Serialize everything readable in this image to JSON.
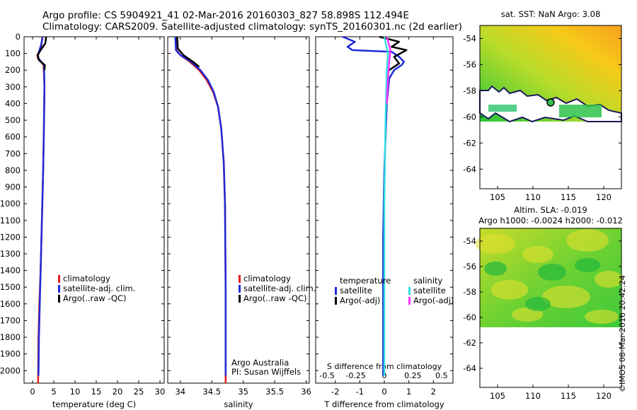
{
  "header": {
    "line1": "Argo profile: CS 5904921_41 02-Mar-2016 20160303_827 58.898S 112.494E",
    "line2": "Climatology: CARS2009. Satellite-adjusted climatology: synTS_20160301.nc (2d earlier)"
  },
  "colors": {
    "climatology": "#e41a1c",
    "satellite": "#1f2ad6",
    "argo": "#000000",
    "satellite_salinity": "#33e0e0",
    "argo_salinity": "#ff33ff"
  },
  "chart_data": [
    {
      "type": "line",
      "id": "temperature",
      "xlabel": "temperature (deg C)",
      "ylabel": "",
      "xlim": [
        -2,
        31
      ],
      "xticks": [
        0,
        5,
        10,
        15,
        20,
        25,
        30
      ],
      "ylim": [
        0,
        2075
      ],
      "yticks": [
        0,
        100,
        200,
        300,
        400,
        500,
        600,
        700,
        800,
        900,
        1000,
        1100,
        1200,
        1300,
        1400,
        1500,
        1600,
        1700,
        1800,
        1900,
        2000
      ],
      "legend": [
        "climatology",
        "satellite-adj. clim.",
        "Argo(..raw -QC)"
      ],
      "series": [
        {
          "name": "climatology",
          "color": "climatology",
          "x": [
            2.3,
            2.1,
            1.6,
            1.1,
            1.3,
            2.6,
            2.8,
            2.7,
            2.5,
            2.3,
            2.1,
            1.9,
            1.6,
            1.4,
            1.3
          ],
          "y": [
            0,
            50,
            90,
            110,
            130,
            170,
            300,
            500,
            800,
            1000,
            1200,
            1400,
            1600,
            1800,
            2075
          ]
        },
        {
          "name": "satellite-adj. clim.",
          "color": "satellite",
          "x": [
            2.4,
            2.0,
            1.5,
            1.3,
            1.4,
            2.7,
            2.8,
            2.7,
            2.5,
            2.3,
            2.1,
            1.9,
            1.7,
            1.5,
            1.4
          ],
          "y": [
            0,
            50,
            90,
            110,
            130,
            170,
            300,
            500,
            800,
            1000,
            1200,
            1400,
            1600,
            1800,
            2030
          ]
        },
        {
          "name": "Argo(..raw -QC)",
          "color": "argo",
          "x": [
            3.2,
            3.0,
            1.9,
            1.2,
            1.5,
            2.9,
            2.8
          ],
          "y": [
            0,
            40,
            80,
            110,
            140,
            170,
            200
          ]
        }
      ]
    },
    {
      "type": "line",
      "id": "salinity",
      "xlabel": "salinity",
      "ylabel": "",
      "xlim": [
        33.8,
        36.05
      ],
      "xticks": [
        34,
        34.5,
        35,
        35.5,
        36
      ],
      "xtick_labels": [
        "34",
        "34.5",
        "35",
        "35.5",
        "36"
      ],
      "ylim": [
        0,
        2075
      ],
      "legend": [
        "climatology",
        "satellite-adj. clim.",
        "Argo(..raw -QC)"
      ],
      "annotations": [
        "Argo Australia",
        "PI: Susan Wijffels"
      ],
      "series": [
        {
          "name": "climatology",
          "color": "climatology",
          "x": [
            33.92,
            33.94,
            34.0,
            34.15,
            34.3,
            34.42,
            34.52,
            34.6,
            34.65,
            34.69,
            34.71,
            34.72,
            34.72
          ],
          "y": [
            0,
            80,
            110,
            150,
            200,
            260,
            330,
            420,
            550,
            750,
            1000,
            1500,
            2075
          ]
        },
        {
          "name": "satellite-adj. clim.",
          "color": "satellite",
          "x": [
            33.92,
            33.93,
            34.0,
            34.17,
            34.32,
            34.44,
            34.53,
            34.6,
            34.65,
            34.69,
            34.71,
            34.72,
            34.72
          ],
          "y": [
            0,
            80,
            110,
            150,
            200,
            260,
            330,
            420,
            550,
            750,
            1000,
            1500,
            2030
          ]
        },
        {
          "name": "Argo(..raw -QC)",
          "color": "argo",
          "x": [
            33.95,
            33.96,
            34.05,
            34.2,
            34.3
          ],
          "y": [
            0,
            70,
            110,
            150,
            180
          ]
        }
      ]
    },
    {
      "type": "line",
      "id": "difference",
      "xlabel": "T difference from climatology",
      "xlabel_top": "S difference from climatology",
      "xlim": [
        -2.8,
        2.8
      ],
      "xticks": [
        -2,
        -1,
        0,
        1,
        2
      ],
      "top_xticks": [
        -0.5,
        -0.25,
        0,
        0.25,
        0.5
      ],
      "top_xtick_labels": [
        "-0.5",
        "-0.25",
        "0",
        "0.25",
        "0.5"
      ],
      "ylim": [
        0,
        2075
      ],
      "legend_groups": [
        {
          "title": "temperature",
          "items": [
            "satellite",
            "Argo(-adj)"
          ]
        },
        {
          "title": "salinity",
          "items": [
            "satellite",
            "Argo(-adj)"
          ]
        }
      ],
      "series": [
        {
          "name": "temperature satellite",
          "color": "satellite",
          "x": [
            -1.7,
            -1.2,
            -1.5,
            -1.3,
            0.3,
            0.6,
            0.8,
            0.7,
            0.4,
            0.2,
            0.1,
            0.0,
            -0.05,
            -0.05
          ],
          "y": [
            0,
            30,
            60,
            80,
            90,
            120,
            150,
            170,
            200,
            250,
            400,
            800,
            1200,
            2030
          ]
        },
        {
          "name": "temperature Argo(-adj)",
          "color": "argo",
          "x": [
            -0.2,
            0.6,
            0.3,
            0.9,
            0.4,
            0.6,
            0.2
          ],
          "y": [
            0,
            30,
            60,
            80,
            120,
            160,
            200
          ]
        },
        {
          "name": "salinity satellite",
          "color": "satellite_salinity",
          "x": [
            0.0,
            0.15,
            0.1,
            0.05,
            0.0,
            0.0
          ],
          "y": [
            0,
            100,
            200,
            500,
            1000,
            2030
          ]
        },
        {
          "name": "salinity Argo(-adj)",
          "color": "argo_salinity",
          "x": [
            0.1,
            0.25,
            0.2,
            0.15,
            0.1
          ],
          "y": [
            0,
            80,
            150,
            250,
            400
          ]
        }
      ]
    }
  ],
  "maps": [
    {
      "title": "sat. SST: NaN Argo: 3.08",
      "title2": "",
      "xticks": [
        105,
        110,
        115,
        120
      ],
      "yticks": [
        -54,
        -56,
        -58,
        -60,
        -62,
        -64
      ],
      "xlim": [
        102.5,
        122.5
      ],
      "ylim": [
        -65.5,
        -53
      ],
      "float_position": {
        "lon": 112.494,
        "lat": -58.898
      }
    },
    {
      "title": "Altim. SLA: -0.019",
      "title2": "Argo h1000: -0.0024 h2000: -0.012",
      "xticks": [
        105,
        110,
        115,
        120
      ],
      "yticks": [
        -54,
        -56,
        -58,
        -60,
        -62,
        -64
      ],
      "xlim": [
        102.5,
        122.5
      ],
      "ylim": [
        -65.5,
        -53
      ]
    }
  ],
  "credit": "©IMOS 08-Mar-2016 20:42:24"
}
